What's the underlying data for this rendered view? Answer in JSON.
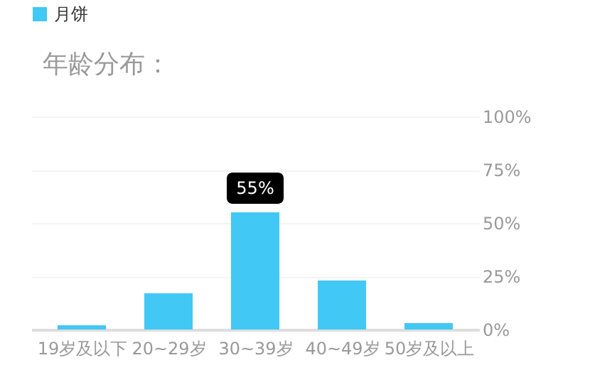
{
  "chart_data": {
    "type": "bar",
    "title": "年龄分布：",
    "categories": [
      "19岁及以下",
      "20~29岁",
      "30~39岁",
      "40~49岁",
      "50岁及以上"
    ],
    "series": [
      {
        "name": "月饼",
        "color": "#41c8f5",
        "values": [
          2,
          17,
          55,
          23,
          3
        ],
        "value_labels": [
          null,
          null,
          "55%",
          null,
          null
        ]
      }
    ],
    "ylim": [
      0,
      100
    ],
    "yticks": [
      {
        "value": 0,
        "label": "0%"
      },
      {
        "value": 25,
        "label": "25%"
      },
      {
        "value": 50,
        "label": "50%"
      },
      {
        "value": 75,
        "label": "75%"
      },
      {
        "value": 100,
        "label": "100%"
      }
    ],
    "grid": "y",
    "legend": "top left"
  }
}
